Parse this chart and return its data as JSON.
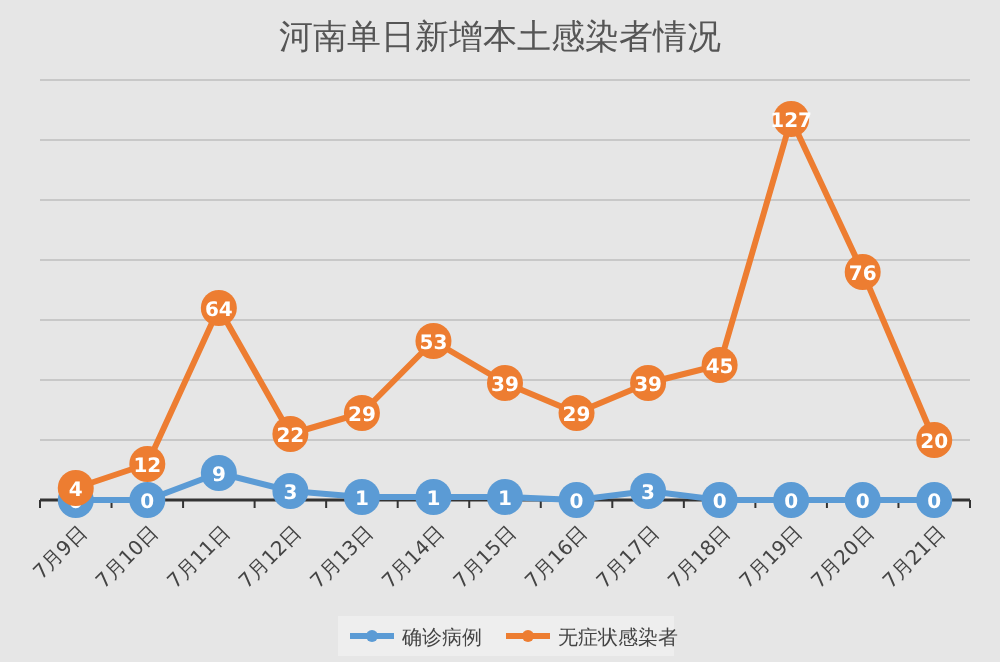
{
  "chart_data": {
    "type": "line",
    "title": "河南单日新增本土感染者情况",
    "categories": [
      "7月9日",
      "7月10日",
      "7月11日",
      "7月12日",
      "7月13日",
      "7月14日",
      "7月15日",
      "7月16日",
      "7月17日",
      "7月18日",
      "7月19日",
      "7月20日",
      "7月21日"
    ],
    "series": [
      {
        "name": "确诊病例",
        "color": "#5b9bd5",
        "values": [
          0,
          0,
          9,
          3,
          1,
          1,
          1,
          0,
          3,
          0,
          0,
          0,
          0
        ]
      },
      {
        "name": "无症状感染者",
        "color": "#ed7d31",
        "values": [
          4,
          12,
          64,
          22,
          29,
          53,
          39,
          29,
          39,
          45,
          127,
          76,
          20
        ]
      }
    ],
    "ylim": [
      0,
      140
    ],
    "yticks": [
      {
        "value": 0,
        "label": null
      },
      {
        "value": 20,
        "label": null
      },
      {
        "value": 40,
        "label": null
      },
      {
        "value": 60,
        "label": null
      },
      {
        "value": 80,
        "label": null
      },
      {
        "value": 100,
        "label": null
      },
      {
        "value": 120,
        "label": null
      },
      {
        "value": 140,
        "label": null
      }
    ],
    "grid": "y",
    "legend": "bottom",
    "marker": "circle",
    "line_style": "solid",
    "data_labels": true,
    "tick_labels": "x"
  }
}
